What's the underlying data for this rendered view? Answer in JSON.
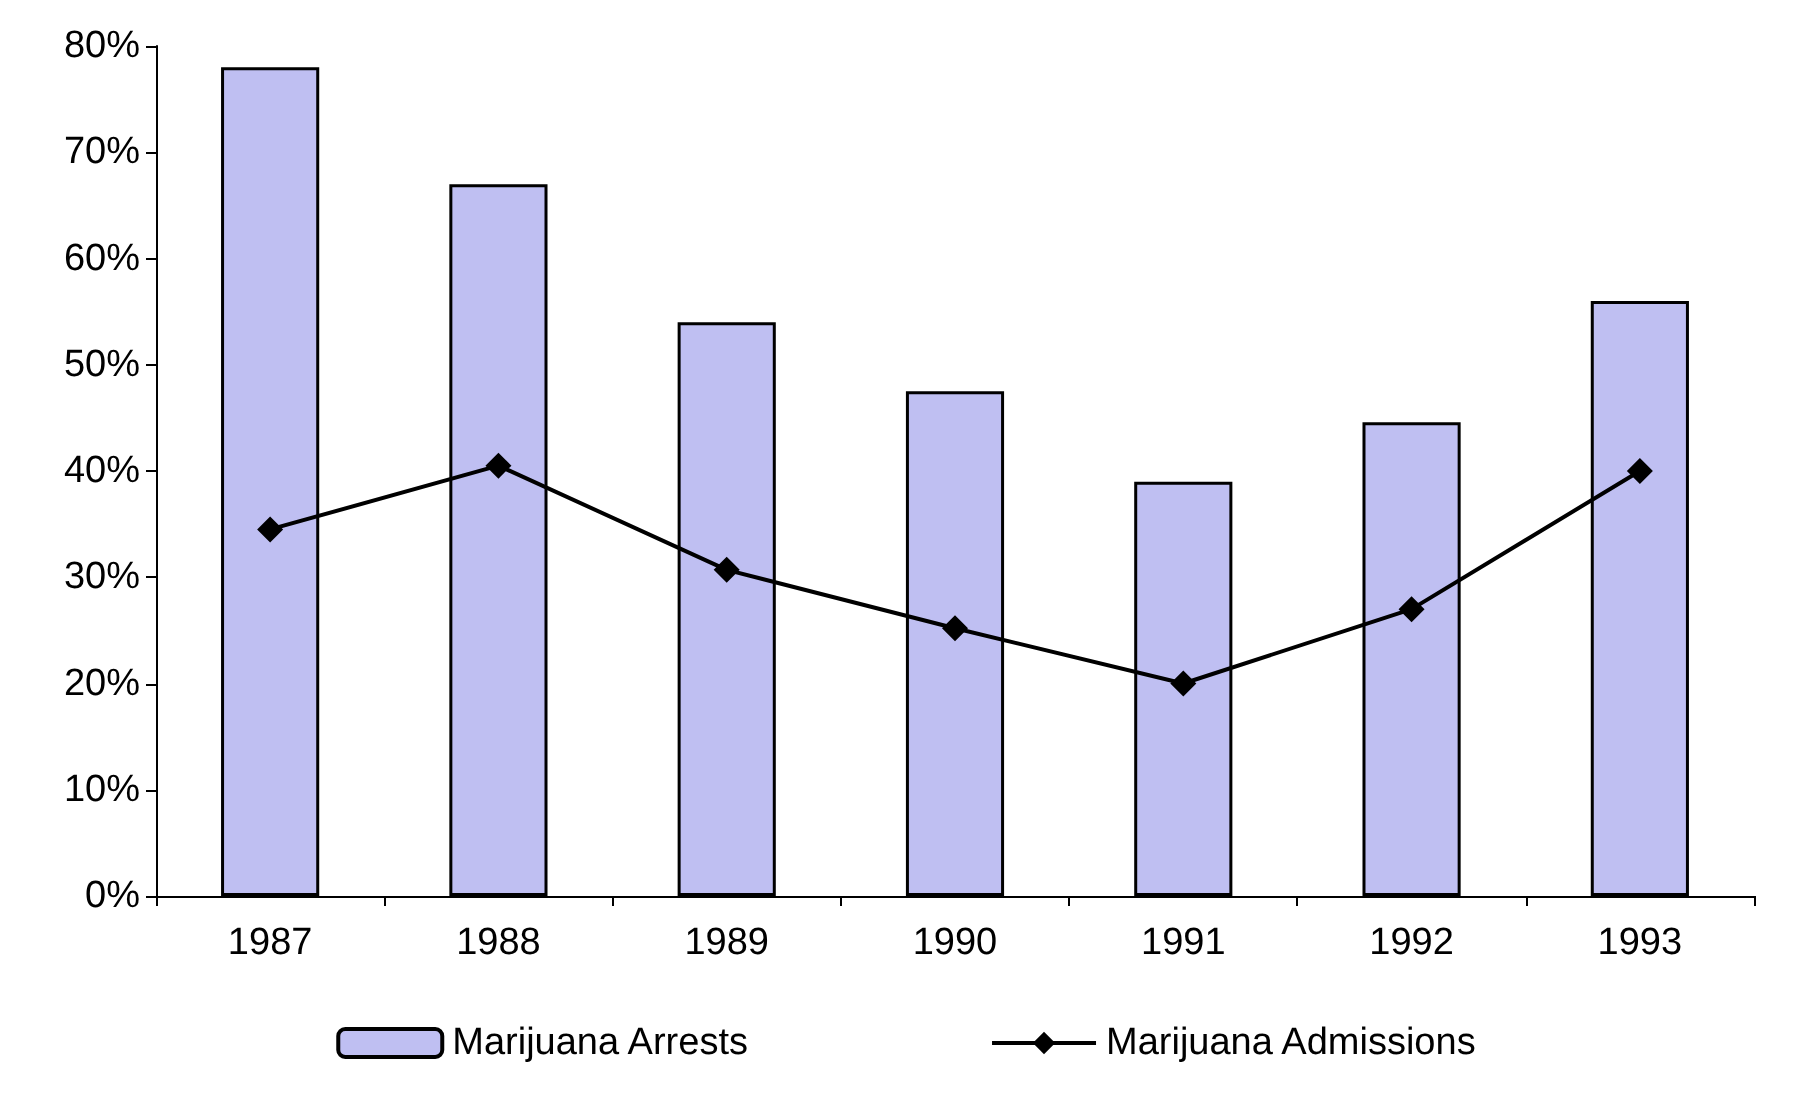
{
  "chart_data": {
    "type": "bar",
    "categories": [
      "1987",
      "1988",
      "1989",
      "1990",
      "1991",
      "1992",
      "1993"
    ],
    "series": [
      {
        "name": "Marijuana Arrests",
        "color": "#bfbff2",
        "values": [
          78,
          67,
          54,
          47.5,
          39,
          44.6,
          56
        ]
      },
      {
        "name": "Marijuana Admissions",
        "type": "line",
        "color": "#000000",
        "marker": "diamond",
        "line_style": "solid",
        "values": [
          34.5,
          40.5,
          30.7,
          25.2,
          20,
          27,
          40
        ]
      }
    ],
    "ylim": [
      0,
      80
    ],
    "yticks": [
      {
        "value": 0,
        "label": "0%"
      },
      {
        "value": 10,
        "label": "10%"
      },
      {
        "value": 20,
        "label": "20%"
      },
      {
        "value": 30,
        "label": "30%"
      },
      {
        "value": 40,
        "label": "40%"
      },
      {
        "value": 50,
        "label": "50%"
      },
      {
        "value": 60,
        "label": "60%"
      },
      {
        "value": 70,
        "label": "70%"
      },
      {
        "value": 80,
        "label": "80%"
      }
    ],
    "grid": false,
    "legend": "bottom"
  }
}
